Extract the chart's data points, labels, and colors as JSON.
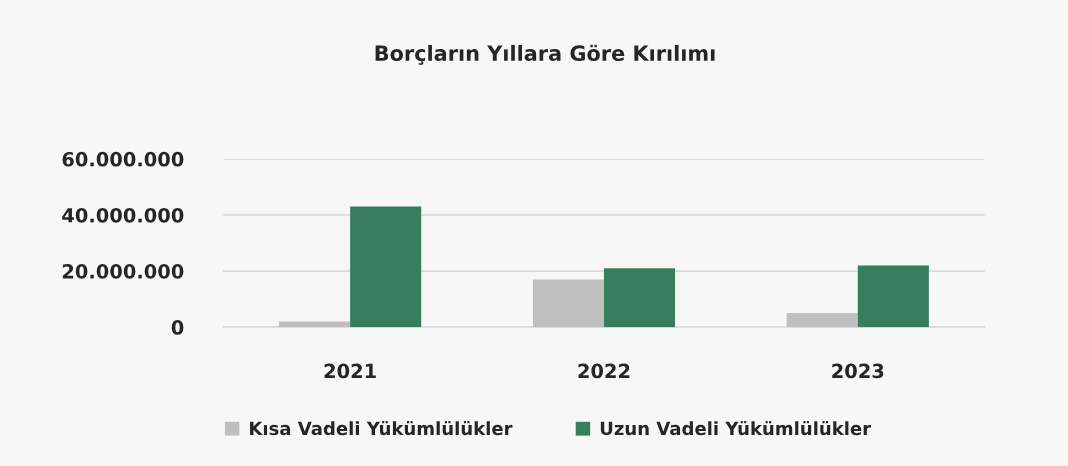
{
  "chart_data": {
    "type": "bar",
    "title": "Borçların Yıllara Göre Kırılımı",
    "categories": [
      "2021",
      "2022",
      "2023"
    ],
    "series": [
      {
        "name": "Kısa Vadeli Yükümlülükler",
        "color": "#bfbfbf",
        "values": [
          2000000,
          17000000,
          5000000
        ]
      },
      {
        "name": "Uzun Vadeli Yükümlülükler",
        "color": "#367e5d",
        "values": [
          43000000,
          21000000,
          22000000
        ]
      }
    ],
    "ylim": [
      0,
      60000000
    ],
    "yticks": [
      0,
      {
        "value": 20000000,
        "label": "20.000.000"
      },
      {
        "value": 40000000,
        "label": "40.000.000"
      },
      {
        "value": 60000000,
        "label": "60.000.000"
      }
    ],
    "grid": "y",
    "legend": "bottom"
  }
}
